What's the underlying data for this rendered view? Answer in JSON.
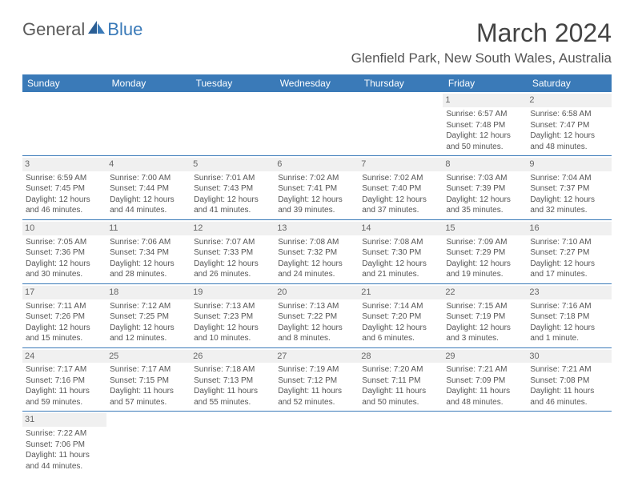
{
  "logo": {
    "general": "General",
    "blue": "Blue"
  },
  "title": "March 2024",
  "location": "Glenfield Park, New South Wales, Australia",
  "colors": {
    "header_bg": "#3a7ab8",
    "header_fg": "#ffffff",
    "daynum_bg": "#f0f0f0",
    "text": "#555555",
    "title": "#444444",
    "divider": "#3a7ab8",
    "page_bg": "#ffffff"
  },
  "typography": {
    "title_fontsize": 32,
    "location_fontsize": 17,
    "header_fontsize": 12,
    "daynum_fontsize": 11,
    "cell_fontsize": 10
  },
  "weekdays": [
    "Sunday",
    "Monday",
    "Tuesday",
    "Wednesday",
    "Thursday",
    "Friday",
    "Saturday"
  ],
  "weeks": [
    [
      null,
      null,
      null,
      null,
      null,
      {
        "d": "1",
        "sr": "Sunrise: 6:57 AM",
        "ss": "Sunset: 7:48 PM",
        "dl": "Daylight: 12 hours and 50 minutes."
      },
      {
        "d": "2",
        "sr": "Sunrise: 6:58 AM",
        "ss": "Sunset: 7:47 PM",
        "dl": "Daylight: 12 hours and 48 minutes."
      }
    ],
    [
      {
        "d": "3",
        "sr": "Sunrise: 6:59 AM",
        "ss": "Sunset: 7:45 PM",
        "dl": "Daylight: 12 hours and 46 minutes."
      },
      {
        "d": "4",
        "sr": "Sunrise: 7:00 AM",
        "ss": "Sunset: 7:44 PM",
        "dl": "Daylight: 12 hours and 44 minutes."
      },
      {
        "d": "5",
        "sr": "Sunrise: 7:01 AM",
        "ss": "Sunset: 7:43 PM",
        "dl": "Daylight: 12 hours and 41 minutes."
      },
      {
        "d": "6",
        "sr": "Sunrise: 7:02 AM",
        "ss": "Sunset: 7:41 PM",
        "dl": "Daylight: 12 hours and 39 minutes."
      },
      {
        "d": "7",
        "sr": "Sunrise: 7:02 AM",
        "ss": "Sunset: 7:40 PM",
        "dl": "Daylight: 12 hours and 37 minutes."
      },
      {
        "d": "8",
        "sr": "Sunrise: 7:03 AM",
        "ss": "Sunset: 7:39 PM",
        "dl": "Daylight: 12 hours and 35 minutes."
      },
      {
        "d": "9",
        "sr": "Sunrise: 7:04 AM",
        "ss": "Sunset: 7:37 PM",
        "dl": "Daylight: 12 hours and 32 minutes."
      }
    ],
    [
      {
        "d": "10",
        "sr": "Sunrise: 7:05 AM",
        "ss": "Sunset: 7:36 PM",
        "dl": "Daylight: 12 hours and 30 minutes."
      },
      {
        "d": "11",
        "sr": "Sunrise: 7:06 AM",
        "ss": "Sunset: 7:34 PM",
        "dl": "Daylight: 12 hours and 28 minutes."
      },
      {
        "d": "12",
        "sr": "Sunrise: 7:07 AM",
        "ss": "Sunset: 7:33 PM",
        "dl": "Daylight: 12 hours and 26 minutes."
      },
      {
        "d": "13",
        "sr": "Sunrise: 7:08 AM",
        "ss": "Sunset: 7:32 PM",
        "dl": "Daylight: 12 hours and 24 minutes."
      },
      {
        "d": "14",
        "sr": "Sunrise: 7:08 AM",
        "ss": "Sunset: 7:30 PM",
        "dl": "Daylight: 12 hours and 21 minutes."
      },
      {
        "d": "15",
        "sr": "Sunrise: 7:09 AM",
        "ss": "Sunset: 7:29 PM",
        "dl": "Daylight: 12 hours and 19 minutes."
      },
      {
        "d": "16",
        "sr": "Sunrise: 7:10 AM",
        "ss": "Sunset: 7:27 PM",
        "dl": "Daylight: 12 hours and 17 minutes."
      }
    ],
    [
      {
        "d": "17",
        "sr": "Sunrise: 7:11 AM",
        "ss": "Sunset: 7:26 PM",
        "dl": "Daylight: 12 hours and 15 minutes."
      },
      {
        "d": "18",
        "sr": "Sunrise: 7:12 AM",
        "ss": "Sunset: 7:25 PM",
        "dl": "Daylight: 12 hours and 12 minutes."
      },
      {
        "d": "19",
        "sr": "Sunrise: 7:13 AM",
        "ss": "Sunset: 7:23 PM",
        "dl": "Daylight: 12 hours and 10 minutes."
      },
      {
        "d": "20",
        "sr": "Sunrise: 7:13 AM",
        "ss": "Sunset: 7:22 PM",
        "dl": "Daylight: 12 hours and 8 minutes."
      },
      {
        "d": "21",
        "sr": "Sunrise: 7:14 AM",
        "ss": "Sunset: 7:20 PM",
        "dl": "Daylight: 12 hours and 6 minutes."
      },
      {
        "d": "22",
        "sr": "Sunrise: 7:15 AM",
        "ss": "Sunset: 7:19 PM",
        "dl": "Daylight: 12 hours and 3 minutes."
      },
      {
        "d": "23",
        "sr": "Sunrise: 7:16 AM",
        "ss": "Sunset: 7:18 PM",
        "dl": "Daylight: 12 hours and 1 minute."
      }
    ],
    [
      {
        "d": "24",
        "sr": "Sunrise: 7:17 AM",
        "ss": "Sunset: 7:16 PM",
        "dl": "Daylight: 11 hours and 59 minutes."
      },
      {
        "d": "25",
        "sr": "Sunrise: 7:17 AM",
        "ss": "Sunset: 7:15 PM",
        "dl": "Daylight: 11 hours and 57 minutes."
      },
      {
        "d": "26",
        "sr": "Sunrise: 7:18 AM",
        "ss": "Sunset: 7:13 PM",
        "dl": "Daylight: 11 hours and 55 minutes."
      },
      {
        "d": "27",
        "sr": "Sunrise: 7:19 AM",
        "ss": "Sunset: 7:12 PM",
        "dl": "Daylight: 11 hours and 52 minutes."
      },
      {
        "d": "28",
        "sr": "Sunrise: 7:20 AM",
        "ss": "Sunset: 7:11 PM",
        "dl": "Daylight: 11 hours and 50 minutes."
      },
      {
        "d": "29",
        "sr": "Sunrise: 7:21 AM",
        "ss": "Sunset: 7:09 PM",
        "dl": "Daylight: 11 hours and 48 minutes."
      },
      {
        "d": "30",
        "sr": "Sunrise: 7:21 AM",
        "ss": "Sunset: 7:08 PM",
        "dl": "Daylight: 11 hours and 46 minutes."
      }
    ],
    [
      {
        "d": "31",
        "sr": "Sunrise: 7:22 AM",
        "ss": "Sunset: 7:06 PM",
        "dl": "Daylight: 11 hours and 44 minutes."
      },
      null,
      null,
      null,
      null,
      null,
      null
    ]
  ]
}
